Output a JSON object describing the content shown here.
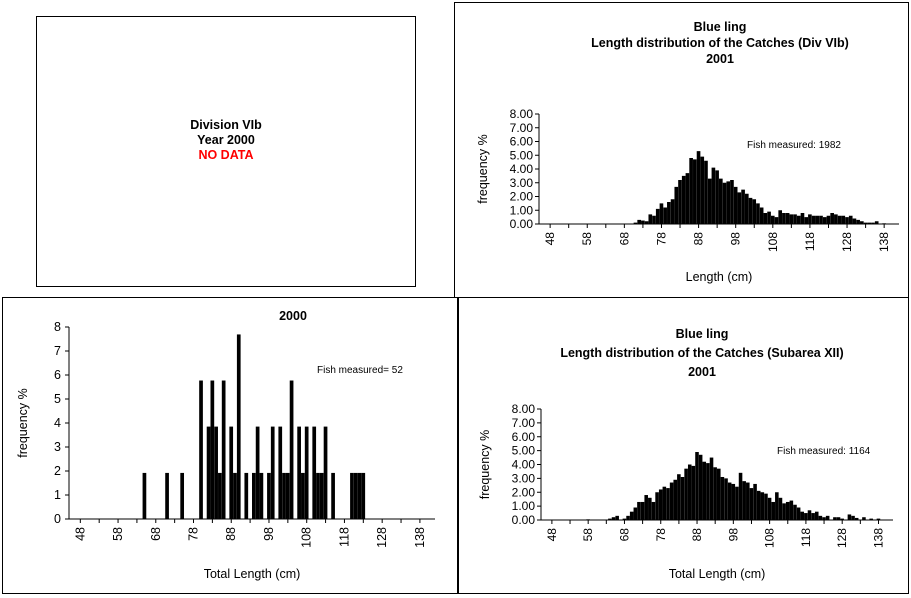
{
  "no_data_panel": {
    "line1": "Division VIb",
    "line2": "Year 2000",
    "line3": "NO DATA"
  },
  "chart_data": [
    {
      "type": "bar",
      "title": "Blue ling\nLength distribution of the Catches (Div VIb)\n2001",
      "xlabel": "Length (cm)",
      "ylabel": "frequency %",
      "xticks": [
        "48",
        "58",
        "68",
        "78",
        "88",
        "98",
        "108",
        "118",
        "128",
        "138"
      ],
      "ylim": [
        0,
        8
      ],
      "yticks": [
        "0.00",
        "1.00",
        "2.00",
        "3.00",
        "4.00",
        "5.00",
        "6.00",
        "7.00",
        "8.00"
      ],
      "annotation": "Fish measured: 1982",
      "x": [
        71,
        72,
        73,
        74,
        75,
        76,
        77,
        78,
        79,
        80,
        81,
        82,
        83,
        84,
        85,
        86,
        87,
        88,
        89,
        90,
        91,
        92,
        93,
        94,
        95,
        96,
        97,
        98,
        99,
        100,
        101,
        102,
        103,
        104,
        105,
        106,
        107,
        108,
        109,
        110,
        111,
        112,
        113,
        114,
        115,
        116,
        117,
        118,
        119,
        120,
        121,
        122,
        123,
        124,
        125,
        126,
        127,
        128,
        129,
        130,
        131,
        132,
        133,
        134,
        135,
        136,
        137,
        138
      ],
      "values": [
        0.1,
        0.3,
        0.25,
        0.2,
        0.7,
        0.6,
        1.1,
        1.5,
        1.2,
        1.6,
        1.8,
        2.7,
        3.2,
        3.5,
        3.7,
        4.8,
        4.7,
        5.3,
        4.9,
        4.6,
        3.3,
        4.1,
        3.9,
        3.3,
        3.0,
        3.1,
        3.2,
        2.7,
        2.3,
        2.5,
        2.2,
        1.9,
        1.8,
        1.5,
        1.2,
        0.8,
        0.9,
        0.6,
        0.5,
        1.0,
        0.8,
        0.8,
        0.7,
        0.7,
        0.6,
        0.8,
        0.5,
        0.7,
        0.6,
        0.6,
        0.6,
        0.5,
        0.6,
        0.8,
        0.7,
        0.6,
        0.6,
        0.5,
        0.6,
        0.4,
        0.3,
        0.2,
        0.1,
        0.1,
        0.1,
        0.2,
        0.0,
        0.05
      ]
    },
    {
      "type": "bar",
      "title": "2000",
      "xlabel": "Total Length (cm)",
      "ylabel": "frequency %",
      "xticks": [
        "48",
        "58",
        "68",
        "78",
        "88",
        "98",
        "108",
        "118",
        "128",
        "138"
      ],
      "ylim": [
        0,
        8
      ],
      "yticks": [
        "0",
        "1",
        "2",
        "3",
        "4",
        "5",
        "6",
        "7",
        "8"
      ],
      "annotation": "Fish measured= 52",
      "x": [
        65,
        71,
        75,
        80,
        82,
        83,
        84,
        85,
        86,
        88,
        89,
        90,
        92,
        94,
        95,
        96,
        98,
        99,
        101,
        102,
        103,
        104,
        106,
        107,
        108,
        110,
        111,
        112,
        113,
        115,
        120,
        121,
        122,
        123
      ],
      "values": [
        1.92,
        1.92,
        1.92,
        5.77,
        3.85,
        5.77,
        3.85,
        1.92,
        5.77,
        3.85,
        1.92,
        7.69,
        1.92,
        1.92,
        3.85,
        1.92,
        1.92,
        3.85,
        3.85,
        1.92,
        1.92,
        5.77,
        3.85,
        1.92,
        3.85,
        3.85,
        1.92,
        1.92,
        3.85,
        1.92,
        1.92,
        1.92,
        1.92,
        1.92
      ]
    },
    {
      "type": "bar",
      "title": "Blue ling\nLength distribution of the Catches (Subarea XII)\n2001",
      "xlabel": "Total Length (cm)",
      "ylabel": "frequency %",
      "xticks": [
        "48",
        "58",
        "68",
        "78",
        "88",
        "98",
        "108",
        "118",
        "128",
        "138"
      ],
      "ylim": [
        0,
        8
      ],
      "yticks": [
        "0.00",
        "1.00",
        "2.00",
        "3.00",
        "4.00",
        "5.00",
        "6.00",
        "7.00",
        "8.00"
      ],
      "annotation": "Fish measured: 1164",
      "x": [
        58,
        64,
        65,
        66,
        68,
        69,
        70,
        71,
        72,
        73,
        74,
        75,
        76,
        77,
        78,
        79,
        80,
        81,
        82,
        83,
        84,
        85,
        86,
        87,
        88,
        89,
        90,
        91,
        92,
        93,
        94,
        95,
        96,
        97,
        98,
        99,
        100,
        101,
        102,
        103,
        104,
        105,
        106,
        107,
        108,
        109,
        110,
        111,
        112,
        113,
        114,
        115,
        116,
        117,
        118,
        119,
        120,
        121,
        122,
        123,
        124,
        126,
        127,
        128,
        130,
        131,
        132,
        134,
        136,
        138
      ],
      "values": [
        0.05,
        0.1,
        0.2,
        0.3,
        0.1,
        0.3,
        0.6,
        0.9,
        1.3,
        1.3,
        1.8,
        1.6,
        1.3,
        2.0,
        2.2,
        2.4,
        2.3,
        2.7,
        2.9,
        3.3,
        3.1,
        3.7,
        4.0,
        3.9,
        4.9,
        4.7,
        4.2,
        4.1,
        4.5,
        3.8,
        3.7,
        3.1,
        3.0,
        2.7,
        2.6,
        2.4,
        3.4,
        2.8,
        2.7,
        2.3,
        2.6,
        2.1,
        2.0,
        1.9,
        1.6,
        1.3,
        2.0,
        1.6,
        1.2,
        1.3,
        1.4,
        1.1,
        0.9,
        0.6,
        0.5,
        0.7,
        0.5,
        0.6,
        0.3,
        0.2,
        0.3,
        0.2,
        0.2,
        0.1,
        0.4,
        0.3,
        0.15,
        0.2,
        0.1,
        0.1
      ]
    }
  ]
}
